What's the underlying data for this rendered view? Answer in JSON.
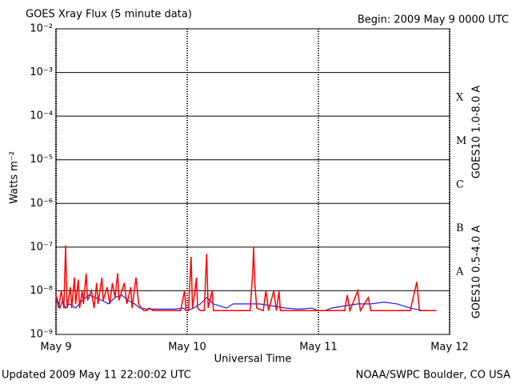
{
  "chart_data": {
    "type": "line",
    "title": "GOES Xray Flux (5 minute data)",
    "subtitle": "Begin:  2009 May 9 0000 UTC",
    "xlabel": "Universal Time",
    "ylabel": "Watts m⁻²",
    "footer_left": "Updated 2009 May 11 22:00:02 UTC",
    "footer_right": "NOAA/SWPC Boulder, CO USA",
    "log_scale": true,
    "grid": true,
    "xlim": [
      0,
      3
    ],
    "xticks": [
      {
        "value": 0,
        "label": "May 9"
      },
      {
        "value": 1,
        "label": "May 10"
      },
      {
        "value": 2,
        "label": "May 11"
      },
      {
        "value": 3,
        "label": "May 12"
      }
    ],
    "ylim": [
      1e-09,
      0.01
    ],
    "yticks": [
      {
        "value": 1e-09,
        "label": "10⁻⁹"
      },
      {
        "value": 1e-08,
        "label": "10⁻⁸"
      },
      {
        "value": 1e-07,
        "label": "10⁻⁷"
      },
      {
        "value": 1e-06,
        "label": "10⁻⁶"
      },
      {
        "value": 1e-05,
        "label": "10⁻⁵"
      },
      {
        "value": 0.0001,
        "label": "10⁻⁴"
      },
      {
        "value": 0.001,
        "label": "10⁻³"
      },
      {
        "value": 0.01,
        "label": "10⁻²"
      }
    ],
    "class_labels": [
      "X",
      "M",
      "C",
      "B",
      "A"
    ],
    "series": [
      {
        "name": "GOES10 1.0-8.0 A",
        "color": "#ff0000",
        "x": [
          0.0,
          0.02,
          0.04,
          0.06,
          0.073,
          0.085,
          0.11,
          0.12,
          0.14,
          0.15,
          0.17,
          0.18,
          0.2,
          0.21,
          0.23,
          0.24,
          0.27,
          0.29,
          0.31,
          0.32,
          0.35,
          0.36,
          0.39,
          0.41,
          0.43,
          0.45,
          0.47,
          0.48,
          0.52,
          0.54,
          0.57,
          0.58,
          0.61,
          0.63,
          0.65,
          0.67,
          0.69,
          0.71,
          0.74,
          0.78,
          0.82,
          0.87,
          0.95,
          0.98,
          0.99,
          1.01,
          1.03,
          1.04,
          1.06,
          1.07,
          1.08,
          1.1,
          1.13,
          1.148,
          1.16,
          1.19,
          1.2,
          1.3,
          1.4,
          1.48,
          1.5,
          1.506,
          1.515,
          1.53,
          1.58,
          1.6,
          1.62,
          1.66,
          1.68,
          1.7,
          1.71,
          1.8,
          1.9,
          2.0,
          2.1,
          2.2,
          2.22,
          2.24,
          2.3,
          2.32,
          2.38,
          2.4,
          2.5,
          2.6,
          2.7,
          2.75,
          2.77,
          2.9
        ],
        "values": [
          8e-09,
          4e-09,
          1e-08,
          4e-09,
          1.1e-07,
          4e-09,
          1.2e-08,
          4e-09,
          2e-08,
          5e-09,
          1.8e-08,
          4e-09,
          1e-08,
          5e-09,
          2.5e-08,
          6e-09,
          1e-08,
          4e-09,
          1.5e-08,
          5e-09,
          2e-08,
          6e-09,
          1.2e-08,
          5e-09,
          1.5e-08,
          7e-09,
          2.5e-08,
          6e-09,
          1.5e-08,
          5e-09,
          1.2e-08,
          4e-09,
          2e-08,
          5e-09,
          4e-09,
          3.5e-09,
          3.5e-09,
          4e-09,
          3.5e-09,
          3.5e-09,
          3.5e-09,
          3.5e-09,
          3.5e-09,
          1e-08,
          3.5e-09,
          3.5e-09,
          6e-08,
          4e-09,
          1e-08,
          2e-08,
          4e-09,
          3.5e-09,
          3.5e-09,
          7e-08,
          4e-09,
          1e-08,
          3.5e-09,
          3.5e-09,
          3.5e-09,
          3.5e-09,
          3e-08,
          1e-07,
          1.5e-08,
          4e-09,
          3.5e-09,
          1e-08,
          3.5e-09,
          1e-08,
          3.5e-09,
          1e-08,
          3.5e-09,
          3.5e-09,
          3.5e-09,
          3.5e-09,
          3.5e-09,
          3.5e-09,
          8e-09,
          3.5e-09,
          1e-08,
          3.5e-09,
          7e-09,
          3.5e-09,
          3.5e-09,
          3.5e-09,
          3.5e-09,
          1.6e-08,
          3.5e-09,
          3.5e-09
        ]
      },
      {
        "name": "GOES10 0.5-4.0 A",
        "color": "#2020e0",
        "x": [
          0.0,
          0.03,
          0.05,
          0.07,
          0.1,
          0.15,
          0.2,
          0.25,
          0.3,
          0.35,
          0.4,
          0.45,
          0.5,
          0.55,
          0.6,
          0.64,
          0.7,
          0.8,
          0.9,
          0.97,
          1.0,
          1.05,
          1.1,
          1.15,
          1.2,
          1.3,
          1.35,
          1.45,
          1.55,
          1.65,
          1.75,
          1.85,
          1.95,
          2.0,
          2.05,
          2.1,
          2.2,
          2.3,
          2.4,
          2.5,
          2.6,
          2.7,
          2.8,
          2.9
        ],
        "values": [
          8e-09,
          4e-09,
          6e-09,
          4e-09,
          5e-09,
          4e-09,
          6e-09,
          8e-09,
          7e-09,
          6e-09,
          5e-09,
          7e-09,
          8e-09,
          6e-09,
          5e-09,
          4e-09,
          3.8e-09,
          3.8e-09,
          3.8e-09,
          4e-09,
          3.5e-09,
          4e-09,
          5e-09,
          7e-09,
          5e-09,
          4e-09,
          5e-09,
          5e-09,
          5e-09,
          4.5e-09,
          4e-09,
          3.8e-09,
          4e-09,
          3.5e-09,
          3.5e-09,
          4e-09,
          4.5e-09,
          5e-09,
          5e-09,
          5.5e-09,
          5e-09,
          4e-09,
          3.5e-09,
          3.5e-09
        ]
      }
    ]
  }
}
